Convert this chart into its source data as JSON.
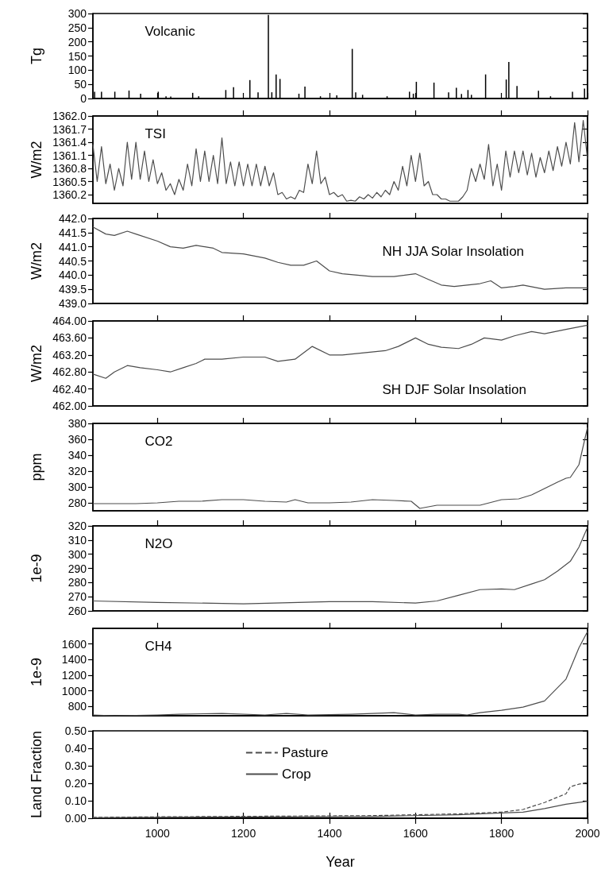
{
  "chart_data": [
    {
      "type": "bar",
      "ylabel": "Tg",
      "annotations": [
        "Volcanic"
      ],
      "xlim": [
        850,
        2000
      ],
      "xticks": [
        1000,
        1200,
        1400,
        1600,
        1800,
        2000
      ],
      "ylim": [
        0,
        300
      ],
      "yticks": [
        0,
        50,
        100,
        150,
        200,
        250,
        300
      ],
      "tick_labels": "y",
      "color": "#000000",
      "x": [
        854,
        870,
        901,
        934,
        961,
        1002,
        1020,
        1031,
        1082,
        1096,
        1159,
        1177,
        1215,
        1234,
        1258,
        1266,
        1276,
        1285,
        1329,
        1343,
        1379,
        1417,
        1453,
        1461,
        1477,
        1534,
        1586,
        1595,
        1602,
        1643,
        1677,
        1695,
        1707,
        1722,
        1730,
        1763,
        1811,
        1817,
        1836,
        1886,
        1914,
        1965,
        1993
      ],
      "values": [
        24,
        24,
        24,
        28,
        17,
        24,
        8,
        7,
        20,
        8,
        30,
        40,
        65,
        22,
        295,
        22,
        85,
        69,
        17,
        42,
        8,
        11,
        175,
        22,
        13,
        8,
        24,
        17,
        59,
        56,
        22,
        38,
        16,
        30,
        13,
        85,
        67,
        129,
        44,
        27,
        8,
        24,
        35
      ]
    },
    {
      "type": "line",
      "ylabel": "W/m2",
      "annotations": [
        "TSI"
      ],
      "xlim": [
        850,
        2000
      ],
      "xticks": [
        1000,
        1200,
        1400,
        1600,
        1800,
        2000
      ],
      "ylim": [
        1360.0,
        1362.0
      ],
      "yticks": [
        1360.2,
        1360.5,
        1360.8,
        1361.1,
        1361.4,
        1361.7,
        {
          "value": 1362,
          "label": "1362.0"
        }
      ],
      "tick_labels": "y",
      "color": "#4d4d4d",
      "x": [
        850,
        860,
        870,
        880,
        890,
        900,
        910,
        920,
        930,
        940,
        950,
        960,
        970,
        980,
        990,
        1000,
        1010,
        1020,
        1030,
        1040,
        1050,
        1060,
        1070,
        1080,
        1090,
        1100,
        1110,
        1120,
        1130,
        1140,
        1150,
        1160,
        1170,
        1180,
        1190,
        1200,
        1210,
        1220,
        1230,
        1240,
        1250,
        1260,
        1270,
        1280,
        1290,
        1300,
        1310,
        1320,
        1330,
        1340,
        1350,
        1360,
        1370,
        1380,
        1390,
        1400,
        1410,
        1420,
        1430,
        1440,
        1450,
        1460,
        1470,
        1480,
        1490,
        1500,
        1510,
        1520,
        1530,
        1540,
        1550,
        1560,
        1570,
        1580,
        1590,
        1600,
        1610,
        1620,
        1630,
        1640,
        1650,
        1660,
        1670,
        1680,
        1690,
        1700,
        1710,
        1720,
        1730,
        1740,
        1750,
        1760,
        1770,
        1780,
        1790,
        1800,
        1810,
        1820,
        1830,
        1840,
        1850,
        1860,
        1870,
        1880,
        1890,
        1900,
        1910,
        1920,
        1930,
        1940,
        1950,
        1960,
        1970,
        1980,
        1990,
        2000
      ],
      "values": [
        1361.35,
        1360.5,
        1361.3,
        1360.45,
        1360.9,
        1360.3,
        1360.8,
        1360.4,
        1361.4,
        1360.55,
        1361.4,
        1360.55,
        1361.2,
        1360.5,
        1361.0,
        1360.45,
        1360.7,
        1360.3,
        1360.45,
        1360.2,
        1360.55,
        1360.3,
        1360.9,
        1360.4,
        1361.25,
        1360.5,
        1361.2,
        1360.5,
        1361.1,
        1360.45,
        1361.5,
        1360.45,
        1360.95,
        1360.4,
        1360.95,
        1360.4,
        1360.9,
        1360.4,
        1360.9,
        1360.4,
        1360.85,
        1360.4,
        1360.7,
        1360.2,
        1360.25,
        1360.1,
        1360.15,
        1360.1,
        1360.3,
        1360.25,
        1360.9,
        1360.45,
        1361.2,
        1360.45,
        1360.6,
        1360.2,
        1360.25,
        1360.15,
        1360.2,
        1360.05,
        1360.07,
        1360.05,
        1360.15,
        1360.1,
        1360.2,
        1360.12,
        1360.25,
        1360.15,
        1360.3,
        1360.2,
        1360.5,
        1360.3,
        1360.85,
        1360.4,
        1361.1,
        1360.5,
        1361.15,
        1360.4,
        1360.5,
        1360.2,
        1360.2,
        1360.1,
        1360.1,
        1360.05,
        1360.05,
        1360.05,
        1360.15,
        1360.3,
        1360.8,
        1360.5,
        1360.9,
        1360.55,
        1361.35,
        1360.4,
        1360.9,
        1360.3,
        1361.2,
        1360.6,
        1361.2,
        1360.7,
        1361.2,
        1360.65,
        1361.15,
        1360.6,
        1361.05,
        1360.7,
        1361.2,
        1360.75,
        1361.3,
        1360.85,
        1361.4,
        1360.9,
        1361.85,
        1360.95,
        1361.9,
        1361.0
      ]
    },
    {
      "type": "line",
      "ylabel": "W/m2",
      "annotations": [
        "NH JJA Solar Insolation"
      ],
      "xlim": [
        850,
        2000
      ],
      "xticks": [
        1000,
        1200,
        1400,
        1600,
        1800,
        2000
      ],
      "ylim": [
        439.0,
        442.0
      ],
      "yticks": [
        {
          "value": 439,
          "label": "439.0"
        },
        439.5,
        {
          "value": 440,
          "label": "440.0"
        },
        440.5,
        {
          "value": 441,
          "label": "441.0"
        },
        441.5,
        {
          "value": 442,
          "label": "442.0"
        }
      ],
      "tick_labels": "y",
      "color": "#4d4d4d",
      "x": [
        850,
        880,
        900,
        930,
        950,
        1000,
        1030,
        1060,
        1090,
        1110,
        1130,
        1150,
        1200,
        1250,
        1280,
        1310,
        1340,
        1370,
        1400,
        1430,
        1500,
        1550,
        1600,
        1630,
        1660,
        1690,
        1720,
        1750,
        1775,
        1800,
        1830,
        1850,
        1900,
        1950,
        2000
      ],
      "values": [
        441.7,
        441.45,
        441.4,
        441.55,
        441.45,
        441.2,
        441.0,
        440.95,
        441.05,
        441.0,
        440.95,
        440.8,
        440.75,
        440.6,
        440.45,
        440.35,
        440.35,
        440.5,
        440.15,
        440.05,
        439.95,
        439.95,
        440.05,
        439.85,
        439.65,
        439.6,
        439.65,
        439.7,
        439.8,
        439.55,
        439.6,
        439.65,
        439.5,
        439.55,
        439.55
      ]
    },
    {
      "type": "line",
      "ylabel": "W/m2",
      "annotations": [
        "SH DJF Solar Insolation"
      ],
      "xlim": [
        850,
        2000
      ],
      "xticks": [
        1000,
        1200,
        1400,
        1600,
        1800,
        2000
      ],
      "ylim": [
        462.0,
        464.0
      ],
      "yticks": [
        {
          "value": 462,
          "label": "462.00"
        },
        {
          "value": 462.4,
          "label": "462.40"
        },
        {
          "value": 462.8,
          "label": "462.80"
        },
        {
          "value": 463.2,
          "label": "463.20"
        },
        {
          "value": 463.6,
          "label": "463.60"
        },
        {
          "value": 464,
          "label": "464.00"
        }
      ],
      "tick_labels": "y",
      "color": "#4d4d4d",
      "x": [
        850,
        880,
        900,
        930,
        960,
        1000,
        1030,
        1060,
        1090,
        1110,
        1150,
        1200,
        1250,
        1280,
        1320,
        1360,
        1400,
        1430,
        1480,
        1530,
        1560,
        1600,
        1630,
        1660,
        1700,
        1730,
        1760,
        1800,
        1830,
        1870,
        1900,
        1950,
        2000
      ],
      "values": [
        462.75,
        462.65,
        462.8,
        462.95,
        462.9,
        462.85,
        462.8,
        462.9,
        463.0,
        463.1,
        463.1,
        463.15,
        463.15,
        463.05,
        463.1,
        463.4,
        463.2,
        463.2,
        463.25,
        463.3,
        463.4,
        463.6,
        463.45,
        463.38,
        463.35,
        463.45,
        463.6,
        463.55,
        463.65,
        463.75,
        463.7,
        463.8,
        463.9
      ]
    },
    {
      "type": "line",
      "ylabel": "ppm",
      "annotations": [
        "CO2"
      ],
      "xlim": [
        850,
        2000
      ],
      "xticks": [
        1000,
        1200,
        1400,
        1600,
        1800,
        2000
      ],
      "ylim": [
        270,
        380
      ],
      "yticks": [
        280,
        300,
        320,
        340,
        360,
        380
      ],
      "tick_labels": "y",
      "color": "#4d4d4d",
      "x": [
        850,
        950,
        1000,
        1050,
        1100,
        1150,
        1200,
        1250,
        1300,
        1320,
        1350,
        1400,
        1450,
        1500,
        1550,
        1590,
        1610,
        1650,
        1700,
        1750,
        1800,
        1840,
        1870,
        1900,
        1930,
        1950,
        1960,
        1980,
        2000
      ],
      "values": [
        279,
        279,
        280,
        282,
        282,
        284,
        284,
        282,
        281,
        284,
        280,
        280,
        281,
        284,
        283,
        282,
        273,
        277,
        277,
        277,
        284,
        285,
        290,
        298,
        306,
        311,
        312,
        328,
        375
      ]
    },
    {
      "type": "line",
      "ylabel": "1e-9",
      "annotations": [
        "N2O"
      ],
      "xlim": [
        850,
        2000
      ],
      "xticks": [
        1000,
        1200,
        1400,
        1600,
        1800,
        2000
      ],
      "ylim": [
        260,
        320
      ],
      "yticks": [
        260,
        270,
        280,
        290,
        300,
        310,
        320
      ],
      "tick_labels": "y",
      "color": "#4d4d4d",
      "x": [
        850,
        1000,
        1200,
        1400,
        1500,
        1600,
        1650,
        1700,
        1750,
        1800,
        1830,
        1870,
        1900,
        1930,
        1960,
        1980,
        2000
      ],
      "values": [
        267,
        266,
        265,
        266.5,
        266.5,
        265.5,
        267,
        271,
        275,
        275.5,
        275,
        279,
        282,
        288,
        295,
        305,
        319
      ]
    },
    {
      "type": "line",
      "ylabel": "1e-9",
      "annotations": [
        "CH4"
      ],
      "xlim": [
        850,
        2000
      ],
      "xticks": [
        1000,
        1200,
        1400,
        1600,
        1800,
        2000
      ],
      "ylim": [
        680,
        1800
      ],
      "yticks": [
        800,
        1000,
        1200,
        1400,
        1600
      ],
      "tick_labels": "y",
      "color": "#4d4d4d",
      "x": [
        850,
        900,
        1000,
        1050,
        1150,
        1250,
        1300,
        1350,
        1450,
        1500,
        1550,
        1600,
        1650,
        1700,
        1720,
        1750,
        1800,
        1850,
        1900,
        1950,
        1980,
        2000
      ],
      "values": [
        690,
        680,
        690,
        700,
        710,
        690,
        710,
        690,
        700,
        710,
        720,
        690,
        700,
        700,
        690,
        720,
        750,
        790,
        870,
        1150,
        1550,
        1760
      ]
    },
    {
      "type": "line",
      "xlabel": "Year",
      "ylabel": "Land Fraction",
      "xlim": [
        850,
        2000
      ],
      "xticks": [
        1000,
        1200,
        1400,
        1600,
        1800,
        2000
      ],
      "ylim": [
        0,
        0.5
      ],
      "yticks": [
        {
          "value": 0,
          "label": "0.00"
        },
        {
          "value": 0.1,
          "label": "0.10"
        },
        {
          "value": 0.2,
          "label": "0.20"
        },
        {
          "value": 0.3,
          "label": "0.30"
        },
        {
          "value": 0.4,
          "label": "0.40"
        },
        {
          "value": 0.5,
          "label": "0.50"
        }
      ],
      "legend": "top left",
      "series": [
        {
          "name": "Pasture",
          "color": "#4d4d4d",
          "line_style": "dashed",
          "x": [
            850,
            1000,
            1500,
            1700,
            1800,
            1850,
            1900,
            1950,
            1960,
            1980,
            2000
          ],
          "values": [
            0.005,
            0.008,
            0.015,
            0.025,
            0.035,
            0.05,
            0.09,
            0.14,
            0.18,
            0.195,
            0.205
          ]
        },
        {
          "name": "Crop",
          "color": "#4d4d4d",
          "line_style": "solid",
          "x": [
            850,
            1000,
            1500,
            1700,
            1800,
            1850,
            1900,
            1950,
            1980,
            2000
          ],
          "values": [
            0.003,
            0.005,
            0.01,
            0.02,
            0.03,
            0.035,
            0.055,
            0.08,
            0.09,
            0.097
          ]
        }
      ]
    }
  ]
}
